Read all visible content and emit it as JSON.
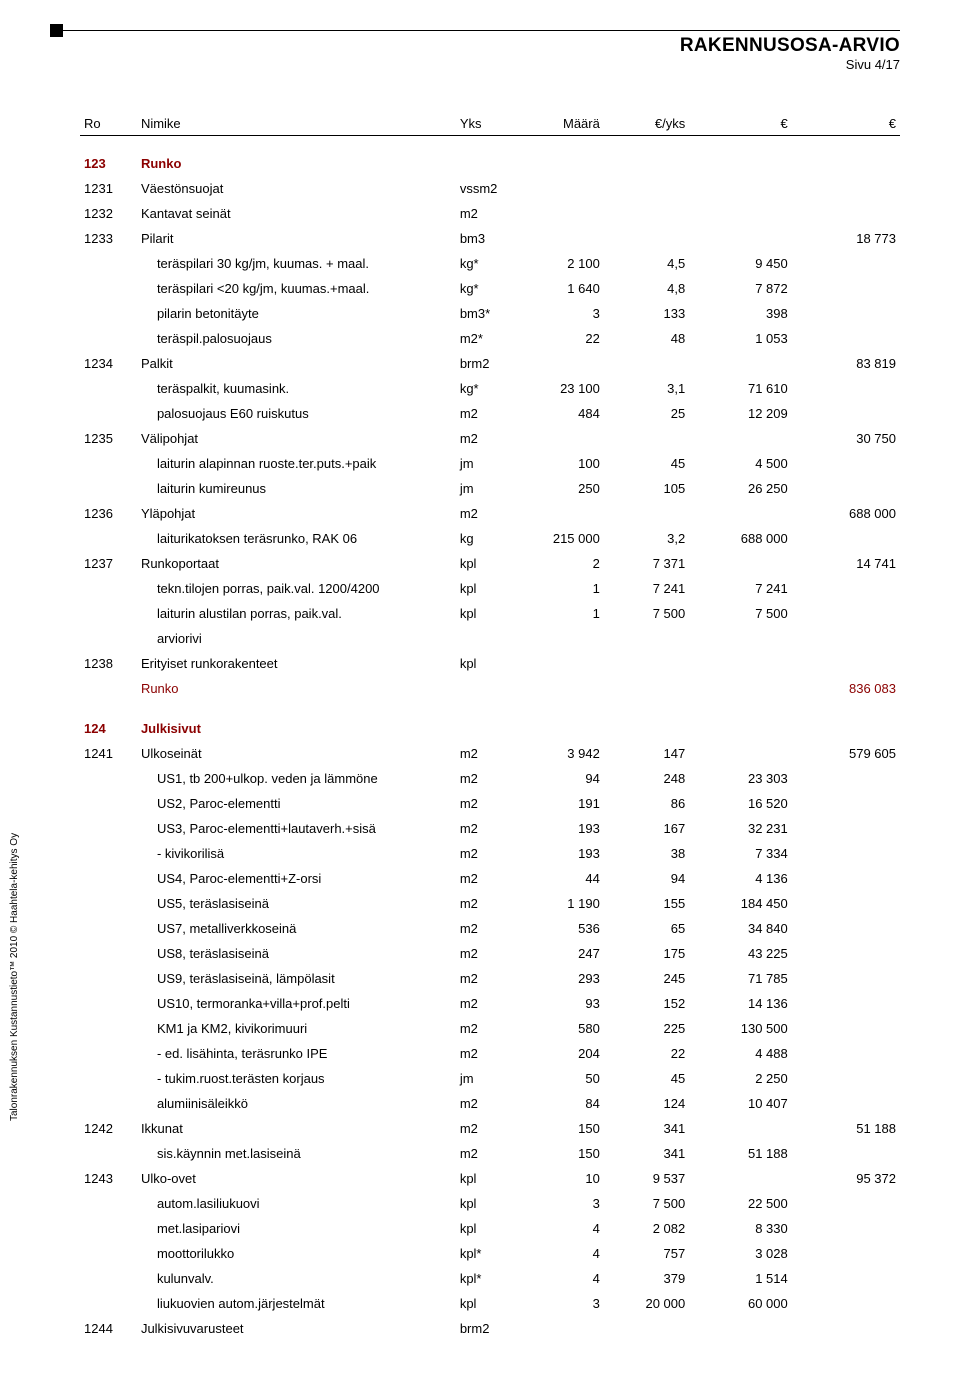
{
  "header": {
    "title": "RAKENNUSOSA-ARVIO",
    "page": "Sivu 4/17"
  },
  "side_text": "Talonrakennuksen Kustannustieto™ 2010 © Haahtela-kehitys Oy",
  "columns": {
    "ro": "Ro",
    "nimike": "Nimike",
    "yks": "Yks",
    "maara": "Määrä",
    "eyks": "€/yks",
    "e1": "€",
    "e2": "€"
  },
  "rows": [
    {
      "type": "section",
      "ro": "123",
      "nimike": "Runko"
    },
    {
      "type": "l1",
      "ro": "1231",
      "nimike": "Väestönsuojat",
      "yks": "vssm2"
    },
    {
      "type": "l1",
      "ro": "1232",
      "nimike": "Kantavat seinät",
      "yks": "m2"
    },
    {
      "type": "l1",
      "ro": "1233",
      "nimike": "Pilarit",
      "yks": "bm3",
      "e2": "18 773"
    },
    {
      "type": "sub",
      "nimike": "teräspilari 30 kg/jm, kuumas. + maal.",
      "yks": "kg*",
      "maara": "2 100",
      "eyks": "4,5",
      "e1": "9 450"
    },
    {
      "type": "sub",
      "nimike": "teräspilari <20 kg/jm, kuumas.+maal.",
      "yks": "kg*",
      "maara": "1 640",
      "eyks": "4,8",
      "e1": "7 872"
    },
    {
      "type": "sub",
      "nimike": "pilarin betonitäyte",
      "yks": "bm3*",
      "maara": "3",
      "eyks": "133",
      "e1": "398"
    },
    {
      "type": "sub",
      "nimike": "teräspil.palosuojaus",
      "yks": "m2*",
      "maara": "22",
      "eyks": "48",
      "e1": "1 053"
    },
    {
      "type": "l1",
      "ro": "1234",
      "nimike": "Palkit",
      "yks": "brm2",
      "e2": "83 819"
    },
    {
      "type": "sub",
      "nimike": "teräspalkit, kuumasink.",
      "yks": "kg*",
      "maara": "23 100",
      "eyks": "3,1",
      "e1": "71 610"
    },
    {
      "type": "sub",
      "nimike": "palosuojaus E60 ruiskutus",
      "yks": "m2",
      "maara": "484",
      "eyks": "25",
      "e1": "12 209"
    },
    {
      "type": "l1",
      "ro": "1235",
      "nimike": "Välipohjat",
      "yks": "m2",
      "e2": "30 750"
    },
    {
      "type": "sub",
      "nimike": "laiturin alapinnan ruoste.ter.puts.+paik",
      "yks": "jm",
      "maara": "100",
      "eyks": "45",
      "e1": "4 500"
    },
    {
      "type": "sub",
      "nimike": "laiturin kumireunus",
      "yks": "jm",
      "maara": "250",
      "eyks": "105",
      "e1": "26 250"
    },
    {
      "type": "l1",
      "ro": "1236",
      "nimike": "Yläpohjat",
      "yks": "m2",
      "e2": "688 000"
    },
    {
      "type": "sub",
      "nimike": "laiturikatoksen teräsrunko, RAK 06",
      "yks": "kg",
      "maara": "215 000",
      "eyks": "3,2",
      "e1": "688 000"
    },
    {
      "type": "l1",
      "ro": "1237",
      "nimike": "Runkoportaat",
      "yks": "kpl",
      "maara": "2",
      "eyks": "7 371",
      "e2": "14 741"
    },
    {
      "type": "sub",
      "nimike": "tekn.tilojen porras, paik.val. 1200/4200",
      "yks": "kpl",
      "maara": "1",
      "eyks": "7 241",
      "e1": "7 241"
    },
    {
      "type": "sub",
      "nimike": "laiturin alustilan porras, paik.val.",
      "yks": "kpl",
      "maara": "1",
      "eyks": "7 500",
      "e1": "7 500"
    },
    {
      "type": "sub",
      "nimike": "arviorivi"
    },
    {
      "type": "l1",
      "ro": "1238",
      "nimike": "Erityiset runkorakenteet",
      "yks": "kpl"
    },
    {
      "type": "sectiontotal",
      "nimike": "Runko",
      "e2": "836 083"
    },
    {
      "type": "section",
      "ro": "124",
      "nimike": "Julkisivut"
    },
    {
      "type": "l1",
      "ro": "1241",
      "nimike": "Ulkoseinät",
      "yks": "m2",
      "maara": "3 942",
      "eyks": "147",
      "e2": "579 605"
    },
    {
      "type": "sub",
      "nimike": "US1, tb 200+ulkop. veden ja lämmöne",
      "yks": "m2",
      "maara": "94",
      "eyks": "248",
      "e1": "23 303"
    },
    {
      "type": "sub",
      "nimike": "US2, Paroc-elementti",
      "yks": "m2",
      "maara": "191",
      "eyks": "86",
      "e1": "16 520"
    },
    {
      "type": "sub",
      "nimike": "US3, Paroc-elementti+lautaverh.+sisä",
      "yks": "m2",
      "maara": "193",
      "eyks": "167",
      "e1": "32 231"
    },
    {
      "type": "sub",
      "nimike": "- kivikorilisä",
      "yks": "m2",
      "maara": "193",
      "eyks": "38",
      "e1": "7 334"
    },
    {
      "type": "sub",
      "nimike": "US4, Paroc-elementti+Z-orsi",
      "yks": "m2",
      "maara": "44",
      "eyks": "94",
      "e1": "4 136"
    },
    {
      "type": "sub",
      "nimike": "US5, teräslasiseinä",
      "yks": "m2",
      "maara": "1 190",
      "eyks": "155",
      "e1": "184 450"
    },
    {
      "type": "sub",
      "nimike": "US7, metalliverkkoseinä",
      "yks": "m2",
      "maara": "536",
      "eyks": "65",
      "e1": "34 840"
    },
    {
      "type": "sub",
      "nimike": "US8, teräslasiseinä",
      "yks": "m2",
      "maara": "247",
      "eyks": "175",
      "e1": "43 225"
    },
    {
      "type": "sub",
      "nimike": "US9, teräslasiseinä, lämpölasit",
      "yks": "m2",
      "maara": "293",
      "eyks": "245",
      "e1": "71 785"
    },
    {
      "type": "sub",
      "nimike": "US10, termoranka+villa+prof.pelti",
      "yks": "m2",
      "maara": "93",
      "eyks": "152",
      "e1": "14 136"
    },
    {
      "type": "sub",
      "nimike": "KM1 ja KM2, kivikorimuuri",
      "yks": "m2",
      "maara": "580",
      "eyks": "225",
      "e1": "130 500"
    },
    {
      "type": "sub",
      "nimike": "- ed. lisähinta, teräsrunko IPE",
      "yks": "m2",
      "maara": "204",
      "eyks": "22",
      "e1": "4 488"
    },
    {
      "type": "sub",
      "nimike": "- tukim.ruost.terästen korjaus",
      "yks": "jm",
      "maara": "50",
      "eyks": "45",
      "e1": "2 250"
    },
    {
      "type": "sub",
      "nimike": "alumiinisäleikkö",
      "yks": "m2",
      "maara": "84",
      "eyks": "124",
      "e1": "10 407"
    },
    {
      "type": "l1",
      "ro": "1242",
      "nimike": "Ikkunat",
      "yks": "m2",
      "maara": "150",
      "eyks": "341",
      "e2": "51 188"
    },
    {
      "type": "sub",
      "nimike": "sis.käynnin met.lasiseinä",
      "yks": "m2",
      "maara": "150",
      "eyks": "341",
      "e1": "51 188"
    },
    {
      "type": "l1",
      "ro": "1243",
      "nimike": "Ulko-ovet",
      "yks": "kpl",
      "maara": "10",
      "eyks": "9 537",
      "e2": "95 372"
    },
    {
      "type": "sub",
      "nimike": "autom.lasiliukuovi",
      "yks": "kpl",
      "maara": "3",
      "eyks": "7 500",
      "e1": "22 500"
    },
    {
      "type": "sub",
      "nimike": "met.lasipariovi",
      "yks": "kpl",
      "maara": "4",
      "eyks": "2 082",
      "e1": "8 330"
    },
    {
      "type": "sub",
      "nimike": "moottorilukko",
      "yks": "kpl*",
      "maara": "4",
      "eyks": "757",
      "e1": "3 028"
    },
    {
      "type": "sub",
      "nimike": "kulunvalv.",
      "yks": "kpl*",
      "maara": "4",
      "eyks": "379",
      "e1": "1 514"
    },
    {
      "type": "sub",
      "nimike": "liukuovien autom.järjestelmät",
      "yks": "kpl",
      "maara": "3",
      "eyks": "20 000",
      "e1": "60 000"
    },
    {
      "type": "l1",
      "ro": "1244",
      "nimike": "Julkisivuvarusteet",
      "yks": "brm2"
    }
  ]
}
